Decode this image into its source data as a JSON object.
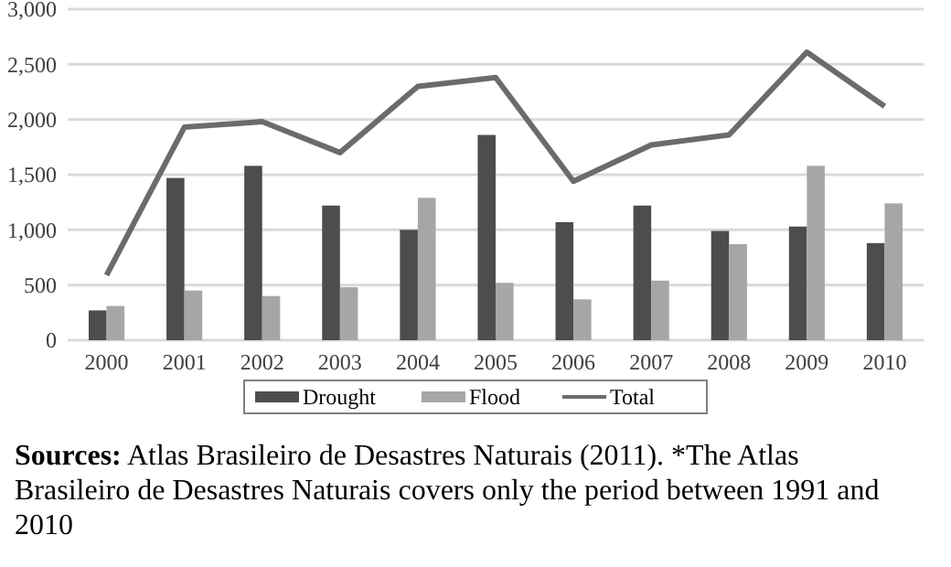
{
  "chart_data": {
    "type": "bar",
    "categories": [
      "2000",
      "2001",
      "2002",
      "2003",
      "2004",
      "2005",
      "2006",
      "2007",
      "2008",
      "2009",
      "2010"
    ],
    "series": [
      {
        "name": "Drought",
        "color": "#4d4d4d",
        "values": [
          270,
          1470,
          1580,
          1220,
          1000,
          1860,
          1070,
          1220,
          990,
          1030,
          880
        ]
      },
      {
        "name": "Flood",
        "color": "#a6a6a6",
        "values": [
          310,
          450,
          400,
          480,
          1290,
          520,
          370,
          540,
          870,
          1580,
          1240
        ]
      },
      {
        "name": "Total",
        "type": "line",
        "color": "#6b6b6b",
        "values": [
          590,
          1930,
          1980,
          1700,
          2300,
          2380,
          1440,
          1770,
          1860,
          2610,
          2120
        ]
      }
    ],
    "ylim": [
      0,
      3000
    ],
    "yticks": [
      0,
      {
        "value": 500,
        "label": "500"
      },
      {
        "value": 1000,
        "label": "1,000"
      },
      {
        "value": 1500,
        "label": "1,500"
      },
      {
        "value": 2000,
        "label": "2,000"
      },
      {
        "value": 2500,
        "label": "2,500"
      },
      {
        "value": 3000,
        "label": "3,000"
      }
    ],
    "grid": "y",
    "legend": "bottom",
    "marker": "none",
    "line_style": "solid",
    "annotations": [
      "Sources: Atlas Brasileiro de Desastres Naturais (2011). *The Atlas Brasileiro de Desastres Naturais covers only the period between 1991 and 2010"
    ]
  }
}
